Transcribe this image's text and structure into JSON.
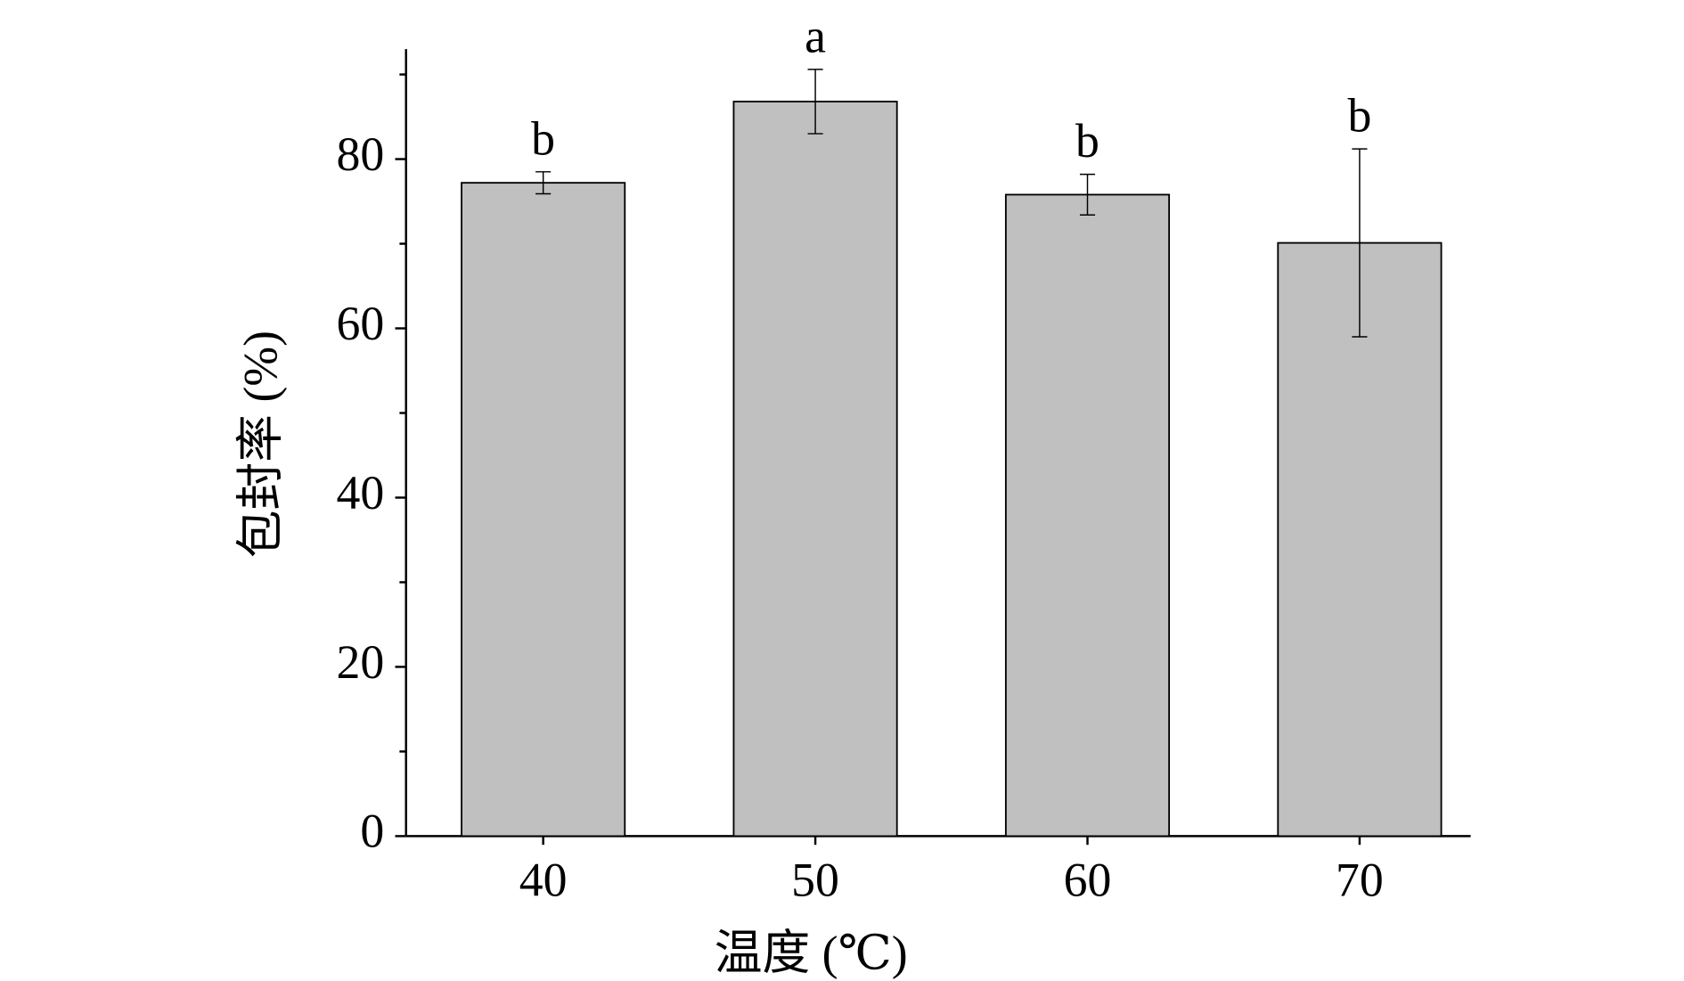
{
  "chart_data": {
    "type": "bar",
    "x_label": "温度 (℃)",
    "y_label": "包封率 (%)",
    "categories": [
      "40",
      "50",
      "60",
      "70"
    ],
    "values": [
      77.2,
      86.8,
      75.8,
      70.1
    ],
    "errors": [
      1.3,
      3.8,
      2.4,
      11.1
    ],
    "annotations": [
      "b",
      "a",
      "b",
      "b"
    ],
    "color": "#c0c0c0",
    "ylim": [
      0,
      93
    ],
    "yticks": [
      0,
      20,
      40,
      60,
      80
    ],
    "yminorticks": [
      10,
      30,
      50,
      70,
      90
    ],
    "grid": false
  }
}
